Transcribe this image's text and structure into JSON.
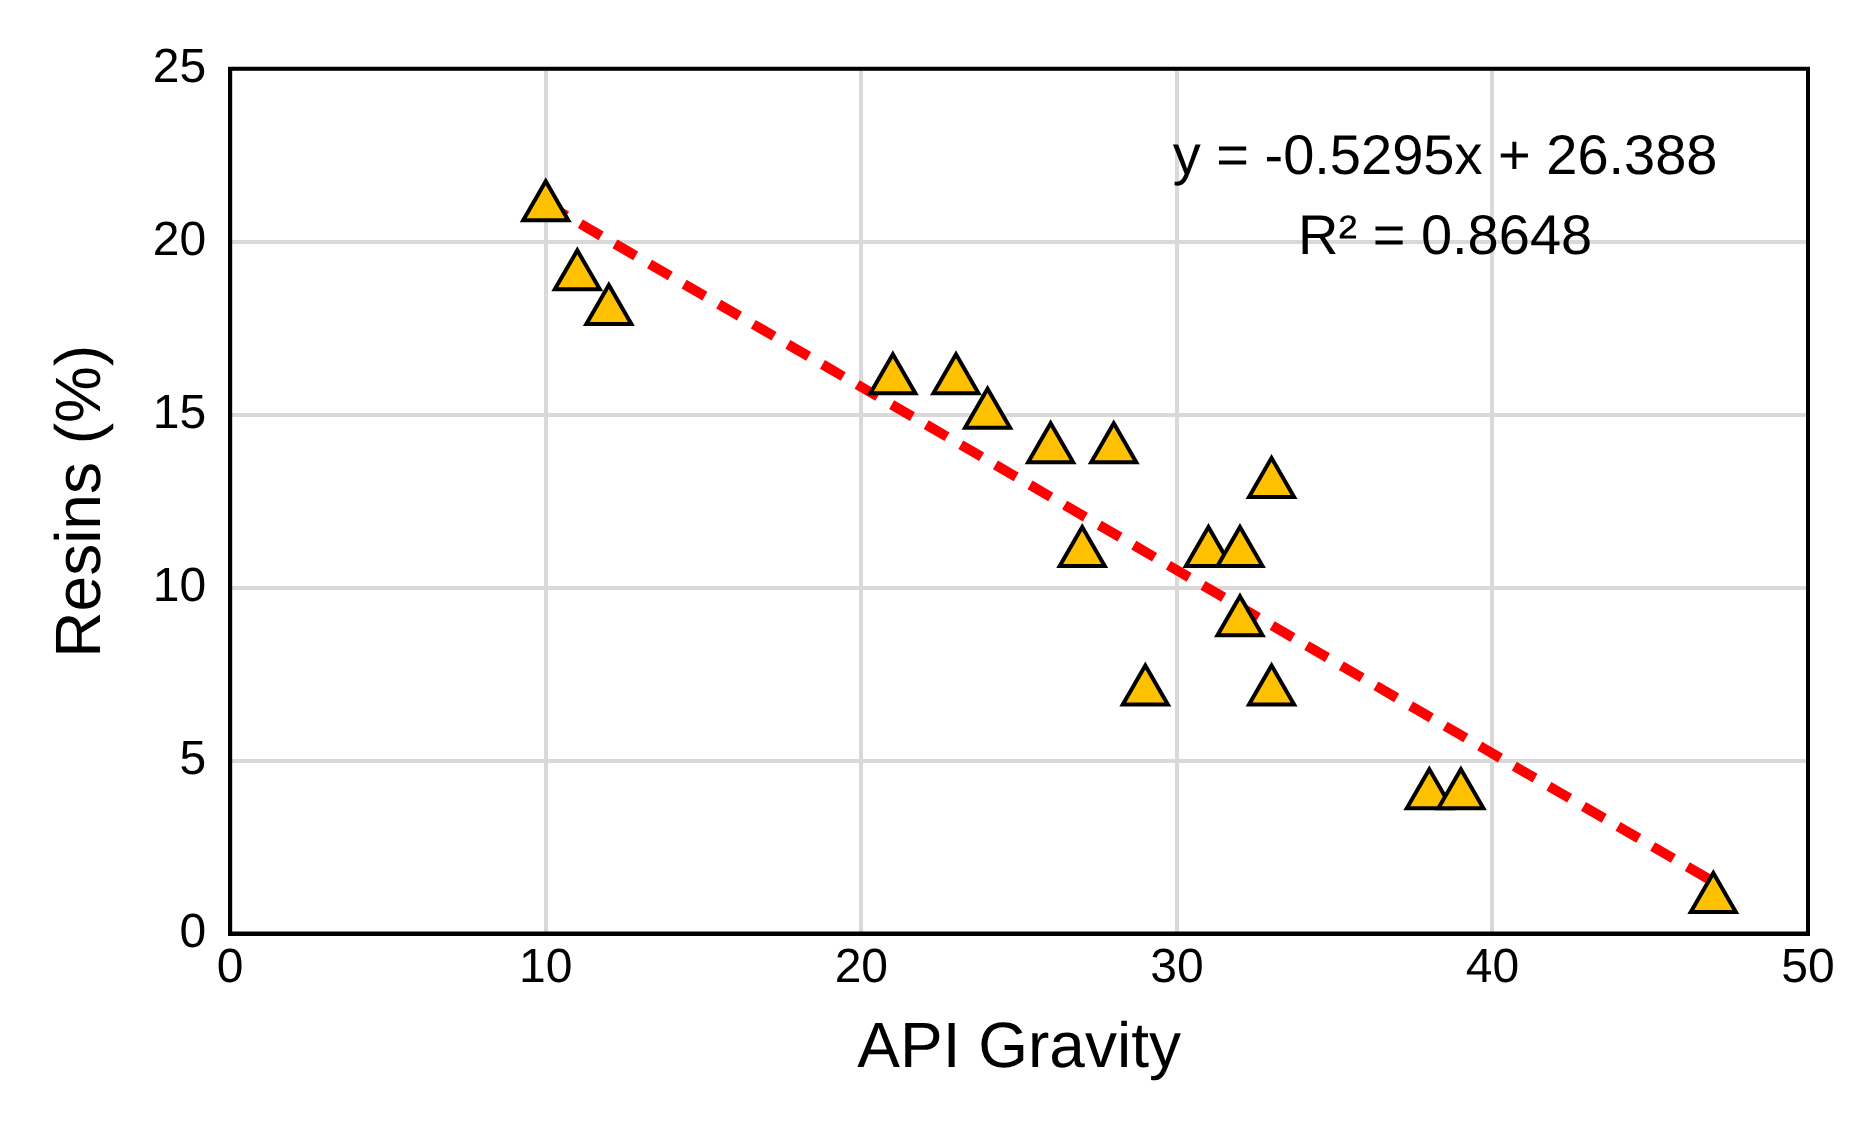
{
  "chart_data": {
    "type": "scatter",
    "xlabel": "API Gravity",
    "ylabel": "Resins (%)",
    "series": [
      {
        "color": "#ffc000",
        "marker": "triangle",
        "x": [
          10,
          11,
          12,
          21,
          23,
          24,
          26,
          28,
          27,
          29,
          31,
          32,
          32,
          33,
          33,
          38,
          39,
          47
        ],
        "values": [
          21,
          19,
          18,
          16,
          16,
          15,
          14,
          14,
          11,
          7,
          11,
          11,
          9,
          13,
          7,
          4,
          4,
          1
        ]
      },
      {
        "type": "line",
        "color": "#ff0000",
        "line_style": "dashed",
        "marker": "none",
        "x": [
          10,
          47
        ],
        "values": [
          21.1,
          1.5
        ]
      }
    ],
    "xlim": [
      0,
      50
    ],
    "xticks": [
      0,
      10,
      20,
      30,
      40,
      50
    ],
    "ylim": [
      0,
      25
    ],
    "yticks": [
      0,
      5,
      10,
      15,
      20,
      25
    ],
    "grid": true,
    "legend": false,
    "annotations": [
      "y = -0.5295x + 26.388",
      "R² = 0.8648"
    ]
  }
}
